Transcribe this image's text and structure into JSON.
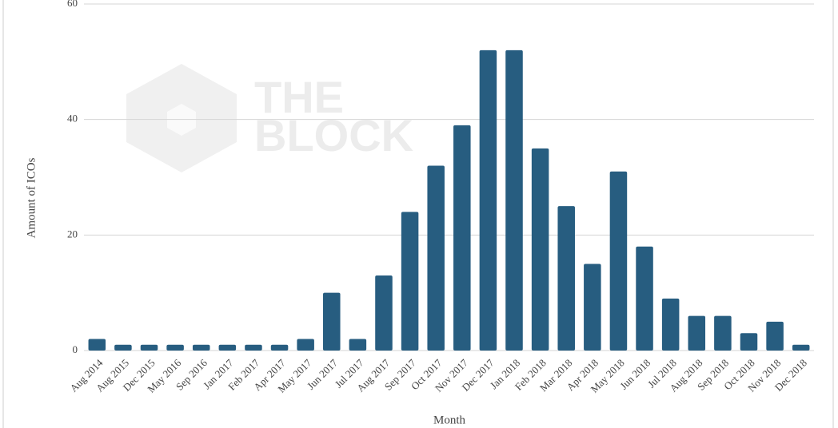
{
  "chart_data": {
    "type": "bar",
    "watermark": [
      "THE",
      "BLOCK"
    ],
    "x_label": "Month",
    "y_label": "Amount of ICOs",
    "categories": [
      "Aug 2014",
      "Aug 2015",
      "Dec 2015",
      "May 2016",
      "Sep 2016",
      "Jan 2017",
      "Feb 2017",
      "Apr 2017",
      "May 2017",
      "Jun 2017",
      "Jul 2017",
      "Aug 2017",
      "Sep 2017",
      "Oct 2017",
      "Nov 2017",
      "Dec 2017",
      "Jan 2018",
      "Feb 2018",
      "Mar 2018",
      "Apr 2018",
      "May 2018",
      "Jun 2018",
      "Jul 2018",
      "Aug 2018",
      "Sep 2018",
      "Oct 2018",
      "Nov 2018",
      "Dec 2018"
    ],
    "values": [
      2,
      1,
      1,
      1,
      1,
      1,
      1,
      1,
      2,
      10,
      2,
      13,
      24,
      32,
      39,
      52,
      52,
      35,
      25,
      15,
      31,
      18,
      9,
      6,
      6,
      3,
      5,
      1
    ],
    "color": "#275d80",
    "ylim": [
      0,
      60
    ],
    "yticks": [
      0,
      20,
      40,
      60
    ],
    "grid": true
  }
}
